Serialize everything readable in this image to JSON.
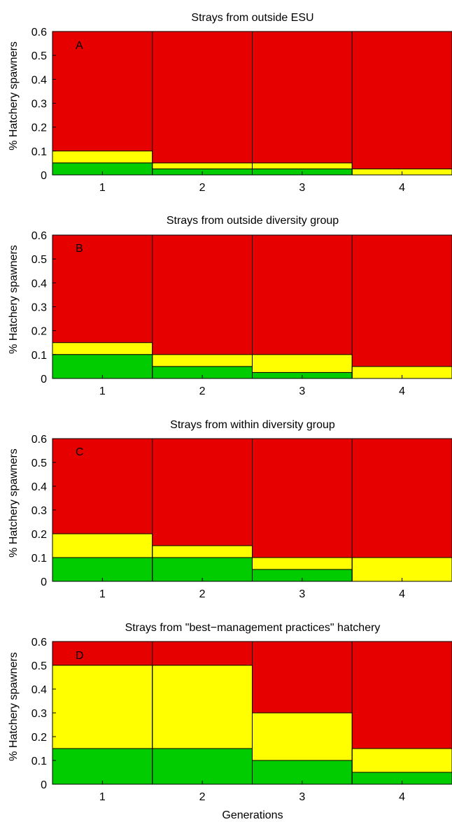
{
  "colors": {
    "red": "#e60000",
    "yellow": "#ffff00",
    "green": "#00cc00",
    "axis": "#000000"
  },
  "xlabel": "Generations",
  "chart_data": [
    {
      "type": "bar",
      "panel_label": "A",
      "title": "Strays from outside ESU",
      "ylabel": "% Hatchery spawners",
      "ylim": [
        0,
        0.6
      ],
      "yticks": [
        "0",
        "0.1",
        "0.2",
        "0.3",
        "0.4",
        "0.5",
        "0.6"
      ],
      "categories": [
        "1",
        "2",
        "3",
        "4"
      ],
      "green_upper": [
        0.05,
        0.025,
        0.025,
        0
      ],
      "yellow_upper": [
        0.1,
        0.05,
        0.05,
        0.025
      ]
    },
    {
      "type": "bar",
      "panel_label": "B",
      "title": "Strays from outside diversity group",
      "ylabel": "% Hatchery spawners",
      "ylim": [
        0,
        0.6
      ],
      "yticks": [
        "0",
        "0.1",
        "0.2",
        "0.3",
        "0.4",
        "0.5",
        "0.6"
      ],
      "categories": [
        "1",
        "2",
        "3",
        "4"
      ],
      "green_upper": [
        0.1,
        0.05,
        0.025,
        0
      ],
      "yellow_upper": [
        0.15,
        0.1,
        0.1,
        0.05
      ]
    },
    {
      "type": "bar",
      "panel_label": "C",
      "title": "Strays from within diversity group",
      "ylabel": "% Hatchery spawners",
      "ylim": [
        0,
        0.6
      ],
      "yticks": [
        "0",
        "0.1",
        "0.2",
        "0.3",
        "0.4",
        "0.5",
        "0.6"
      ],
      "categories": [
        "1",
        "2",
        "3",
        "4"
      ],
      "green_upper": [
        0.1,
        0.1,
        0.05,
        0
      ],
      "yellow_upper": [
        0.2,
        0.15,
        0.1,
        0.1
      ]
    },
    {
      "type": "bar",
      "panel_label": "D",
      "title": "Strays from \"best−management practices\" hatchery",
      "ylabel": "% Hatchery spawners",
      "ylim": [
        0,
        0.6
      ],
      "yticks": [
        "0",
        "0.1",
        "0.2",
        "0.3",
        "0.4",
        "0.5",
        "0.6"
      ],
      "categories": [
        "1",
        "2",
        "3",
        "4"
      ],
      "green_upper": [
        0.15,
        0.15,
        0.1,
        0.05
      ],
      "yellow_upper": [
        0.5,
        0.5,
        0.3,
        0.15
      ]
    }
  ]
}
